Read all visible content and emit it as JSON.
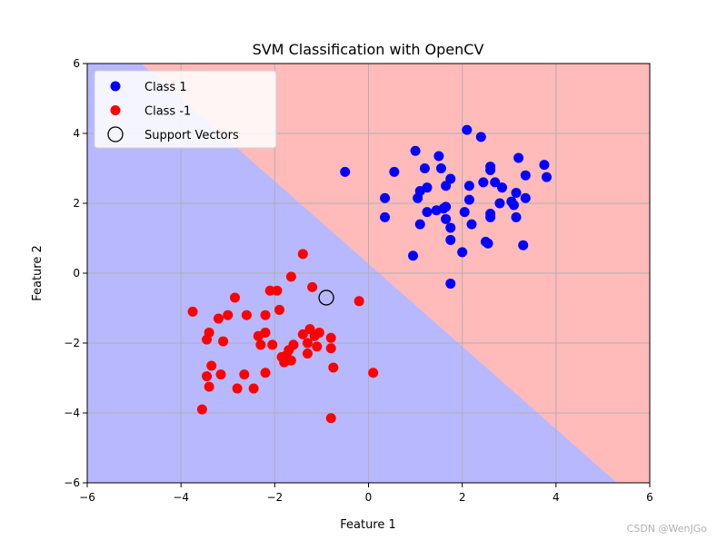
{
  "chart_data": {
    "type": "scatter",
    "title": "SVM Classification with OpenCV",
    "xlabel": "Feature 1",
    "ylabel": "Feature 2",
    "xlim": [
      -6,
      6
    ],
    "ylim": [
      -6,
      6
    ],
    "xticks": [
      -6,
      -4,
      -2,
      0,
      2,
      4,
      6
    ],
    "yticks": [
      -6,
      -4,
      -2,
      0,
      2,
      4,
      6
    ],
    "grid": true,
    "legend_position": "top-left",
    "colors": {
      "class1": "#0000ff",
      "class_neg1": "#ff0000",
      "region_class1": "#b8b8ff",
      "region_class_neg1": "#ffbaba",
      "grid": "#b0b0b0"
    },
    "decision_boundary": {
      "description_points": [
        [
          -4.85,
          6
        ],
        [
          5.3,
          -6
        ]
      ]
    },
    "series": [
      {
        "name": "Class 1",
        "color": "#0000ff",
        "points": [
          [
            2.1,
            4.1
          ],
          [
            2.4,
            3.9
          ],
          [
            1.0,
            3.5
          ],
          [
            1.5,
            3.35
          ],
          [
            1.2,
            3.0
          ],
          [
            1.55,
            3.0
          ],
          [
            2.6,
            3.05
          ],
          [
            3.2,
            3.3
          ],
          [
            3.75,
            3.1
          ],
          [
            -0.5,
            2.9
          ],
          [
            0.55,
            2.9
          ],
          [
            2.6,
            2.95
          ],
          [
            3.35,
            2.8
          ],
          [
            3.8,
            2.75
          ],
          [
            1.75,
            2.7
          ],
          [
            2.15,
            2.5
          ],
          [
            2.45,
            2.6
          ],
          [
            2.7,
            2.6
          ],
          [
            1.1,
            2.35
          ],
          [
            1.25,
            2.45
          ],
          [
            1.65,
            2.5
          ],
          [
            2.85,
            2.45
          ],
          [
            3.15,
            2.3
          ],
          [
            0.35,
            2.15
          ],
          [
            1.05,
            2.15
          ],
          [
            2.15,
            2.1
          ],
          [
            3.35,
            2.15
          ],
          [
            2.8,
            2.0
          ],
          [
            3.05,
            2.05
          ],
          [
            1.25,
            1.75
          ],
          [
            1.45,
            1.8
          ],
          [
            1.65,
            1.9
          ],
          [
            1.6,
            1.85
          ],
          [
            2.05,
            1.75
          ],
          [
            2.6,
            1.7
          ],
          [
            3.1,
            1.95
          ],
          [
            0.35,
            1.6
          ],
          [
            1.1,
            1.4
          ],
          [
            1.65,
            1.55
          ],
          [
            2.2,
            1.4
          ],
          [
            2.6,
            1.6
          ],
          [
            3.15,
            1.6
          ],
          [
            1.75,
            1.3
          ],
          [
            1.75,
            0.95
          ],
          [
            2.5,
            0.9
          ],
          [
            2.55,
            0.85
          ],
          [
            3.3,
            0.8
          ],
          [
            2.0,
            0.6
          ],
          [
            0.95,
            0.5
          ],
          [
            1.75,
            -0.3
          ]
        ]
      },
      {
        "name": "Class -1",
        "color": "#ff0000",
        "points": [
          [
            -1.4,
            0.55
          ],
          [
            -1.65,
            -0.1
          ],
          [
            -2.1,
            -0.5
          ],
          [
            -1.95,
            -0.5
          ],
          [
            -1.2,
            -0.4
          ],
          [
            -2.85,
            -0.7
          ],
          [
            -0.2,
            -0.8
          ],
          [
            -3.75,
            -1.1
          ],
          [
            -3.0,
            -1.2
          ],
          [
            -3.2,
            -1.3
          ],
          [
            -2.6,
            -1.2
          ],
          [
            -2.2,
            -1.2
          ],
          [
            -1.9,
            -1.05
          ],
          [
            -3.4,
            -1.7
          ],
          [
            -2.35,
            -1.8
          ],
          [
            -2.2,
            -1.7
          ],
          [
            -1.25,
            -1.6
          ],
          [
            -1.4,
            -1.75
          ],
          [
            -1.05,
            -1.7
          ],
          [
            -1.15,
            -1.8
          ],
          [
            -0.8,
            -1.85
          ],
          [
            -3.45,
            -1.9
          ],
          [
            -3.1,
            -1.95
          ],
          [
            -2.3,
            -2.05
          ],
          [
            -2.05,
            -2.05
          ],
          [
            -1.6,
            -2.05
          ],
          [
            -1.3,
            -2.0
          ],
          [
            -1.1,
            -2.1
          ],
          [
            -0.8,
            -2.15
          ],
          [
            -1.7,
            -2.2
          ],
          [
            -1.3,
            -2.3
          ],
          [
            -1.75,
            -2.35
          ],
          [
            -1.85,
            -2.4
          ],
          [
            -1.65,
            -2.5
          ],
          [
            -1.8,
            -2.55
          ],
          [
            -3.35,
            -2.65
          ],
          [
            -0.75,
            -2.7
          ],
          [
            -3.15,
            -2.9
          ],
          [
            -2.65,
            -2.9
          ],
          [
            -2.2,
            -2.85
          ],
          [
            -3.45,
            -2.95
          ],
          [
            0.1,
            -2.85
          ],
          [
            -2.8,
            -3.3
          ],
          [
            -2.45,
            -3.3
          ],
          [
            -3.4,
            -3.25
          ],
          [
            -3.55,
            -3.9
          ],
          [
            -0.8,
            -4.15
          ]
        ]
      }
    ],
    "support_vectors": [
      [
        -0.9,
        -0.7
      ]
    ],
    "legend": [
      {
        "label": "Class 1",
        "marker": "filled-circle",
        "color": "#0000ff"
      },
      {
        "label": "Class -1",
        "marker": "filled-circle",
        "color": "#ff0000"
      },
      {
        "label": "Support Vectors",
        "marker": "hollow-circle",
        "color": "#000000"
      }
    ]
  },
  "watermark": "CSDN @WenJGo"
}
